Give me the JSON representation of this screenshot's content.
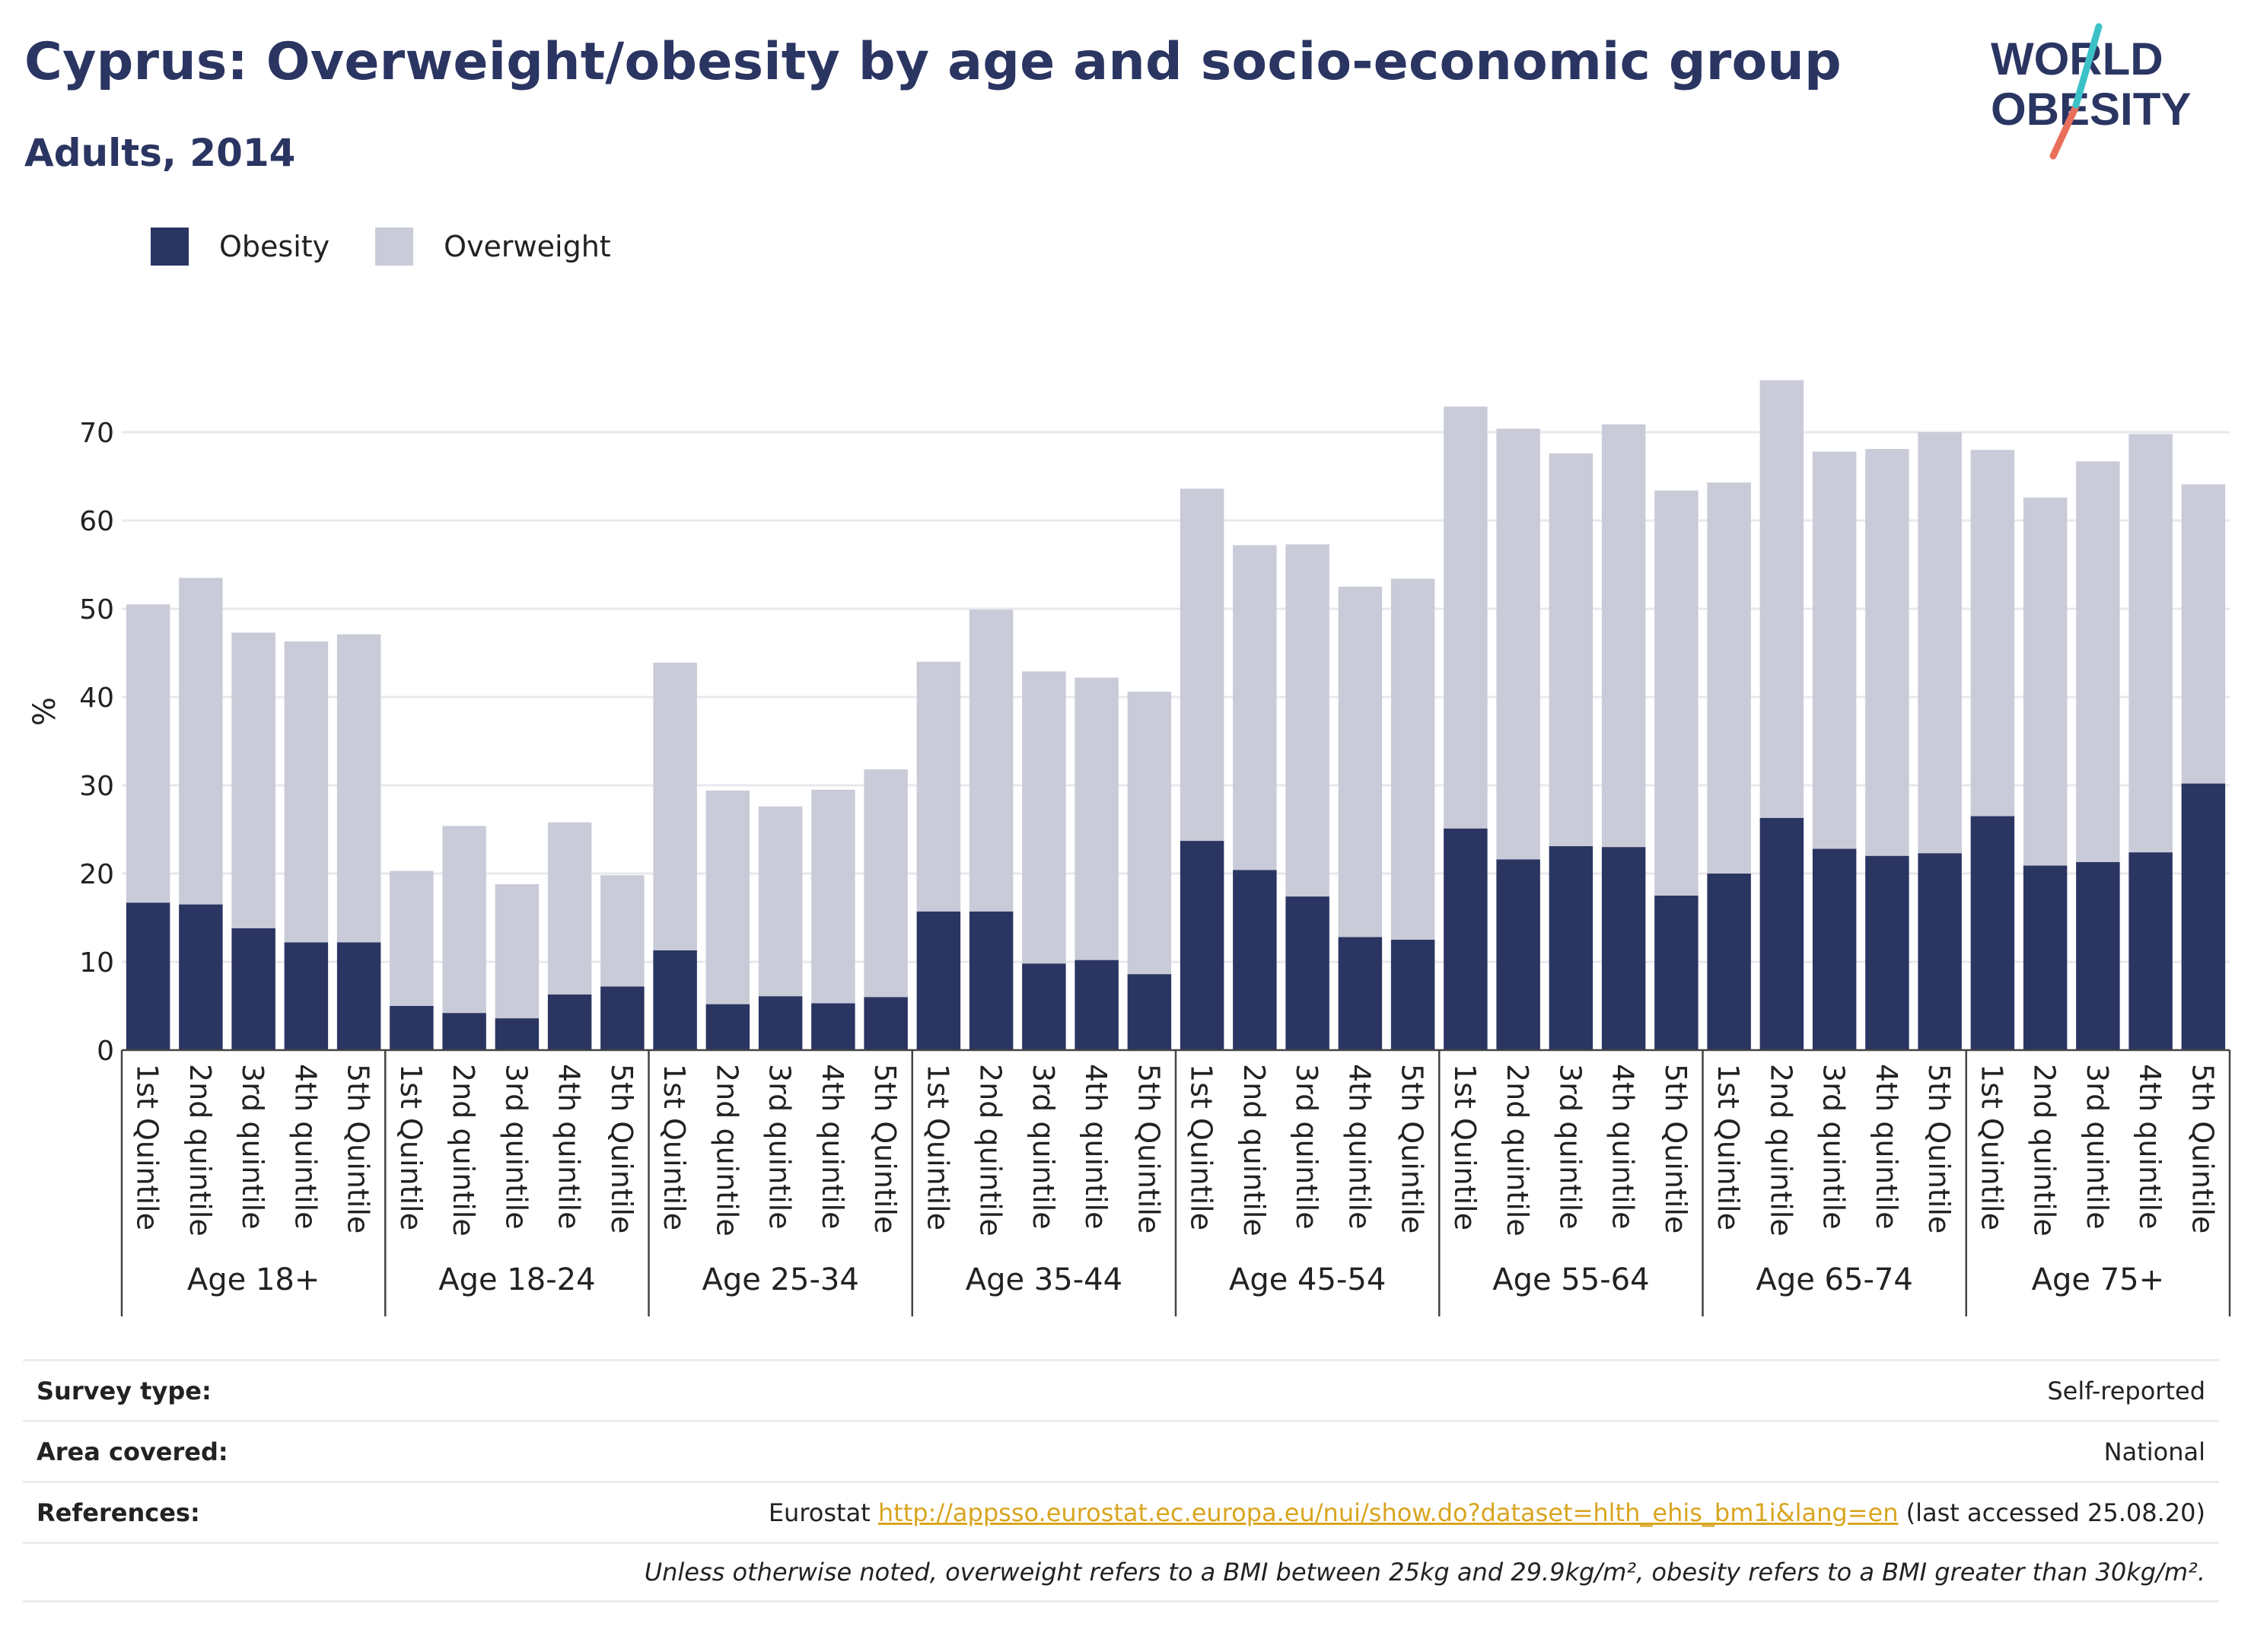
{
  "header": {
    "title": "Cyprus: Overweight/obesity by age and socio-economic group",
    "subtitle": "Adults, 2014"
  },
  "logo": {
    "line1": "WORLD",
    "line2": "OBESITY"
  },
  "legend": [
    {
      "label": "Obesity",
      "color": "#2b3562"
    },
    {
      "label": "Overweight",
      "color": "#cacbd8"
    }
  ],
  "chart_data": {
    "type": "bar",
    "stacked": true,
    "ylabel": "%",
    "ylim": [
      0,
      80
    ],
    "yticks": [
      0,
      10,
      20,
      30,
      40,
      50,
      60,
      70
    ],
    "grid": true,
    "legend_position": "top-left",
    "groups": [
      {
        "label": "Age 18+",
        "categories": [
          "1st Quintile",
          "2nd quintile",
          "3rd quintile",
          "4th quintile",
          "5th Quintile"
        ],
        "obesity": [
          16.7,
          16.5,
          13.8,
          12.2,
          12.2
        ],
        "total": [
          50.5,
          53.5,
          47.3,
          46.3,
          47.1
        ]
      },
      {
        "label": "Age 18-24",
        "categories": [
          "1st Quintile",
          "2nd quintile",
          "3rd quintile",
          "4th quintile",
          "5th Quintile"
        ],
        "obesity": [
          5.0,
          4.2,
          3.6,
          6.3,
          7.2
        ],
        "total": [
          20.3,
          25.4,
          18.8,
          25.8,
          19.8
        ]
      },
      {
        "label": "Age 25-34",
        "categories": [
          "1st Quintile",
          "2nd quintile",
          "3rd quintile",
          "4th quintile",
          "5th Quintile"
        ],
        "obesity": [
          11.3,
          5.2,
          6.1,
          5.3,
          6.0
        ],
        "total": [
          43.9,
          29.4,
          27.6,
          29.5,
          31.8
        ]
      },
      {
        "label": "Age 35-44",
        "categories": [
          "1st Quintile",
          "2nd quintile",
          "3rd quintile",
          "4th quintile",
          "5th Quintile"
        ],
        "obesity": [
          15.7,
          15.7,
          9.8,
          10.2,
          8.6
        ],
        "total": [
          44.0,
          49.9,
          42.9,
          42.2,
          40.6
        ]
      },
      {
        "label": "Age 45-54",
        "categories": [
          "1st Quintile",
          "2nd quintile",
          "3rd quintile",
          "4th quintile",
          "5th Quintile"
        ],
        "obesity": [
          23.7,
          20.4,
          17.4,
          12.8,
          12.5
        ],
        "total": [
          63.6,
          57.2,
          57.3,
          52.5,
          53.4
        ]
      },
      {
        "label": "Age 55-64",
        "categories": [
          "1st Quintile",
          "2nd quintile",
          "3rd quintile",
          "4th quintile",
          "5th Quintile"
        ],
        "obesity": [
          25.1,
          21.6,
          23.1,
          23.0,
          17.5
        ],
        "total": [
          72.9,
          70.4,
          67.6,
          70.9,
          63.4
        ]
      },
      {
        "label": "Age 65-74",
        "categories": [
          "1st Quintile",
          "2nd quintile",
          "3rd quintile",
          "4th quintile",
          "5th Quintile"
        ],
        "obesity": [
          20.0,
          26.3,
          22.8,
          22.0,
          22.3
        ],
        "total": [
          64.3,
          75.9,
          67.8,
          68.1,
          70.0
        ]
      },
      {
        "label": "Age 75+",
        "categories": [
          "1st Quintile",
          "2nd quintile",
          "3rd quintile",
          "4th quintile",
          "5th Quintile"
        ],
        "obesity": [
          26.5,
          20.9,
          21.3,
          22.4,
          30.2
        ],
        "total": [
          68.0,
          62.6,
          66.7,
          69.8,
          64.1
        ]
      }
    ]
  },
  "info": {
    "survey_label": "Survey type:",
    "survey_value": "Self-reported",
    "area_label": "Area covered:",
    "area_value": "National",
    "references_label": "References:",
    "ref_prefix": "Eurostat ",
    "ref_link": "http://appsso.eurostat.ec.europa.eu/nui/show.do?dataset=hlth_ehis_bm1i&lang=en",
    "ref_suffix": " (last accessed 25.08.20)",
    "note": "Unless otherwise noted, overweight refers to a BMI between 25kg and 29.9kg/m², obesity refers to a BMI greater than 30kg/m²."
  }
}
